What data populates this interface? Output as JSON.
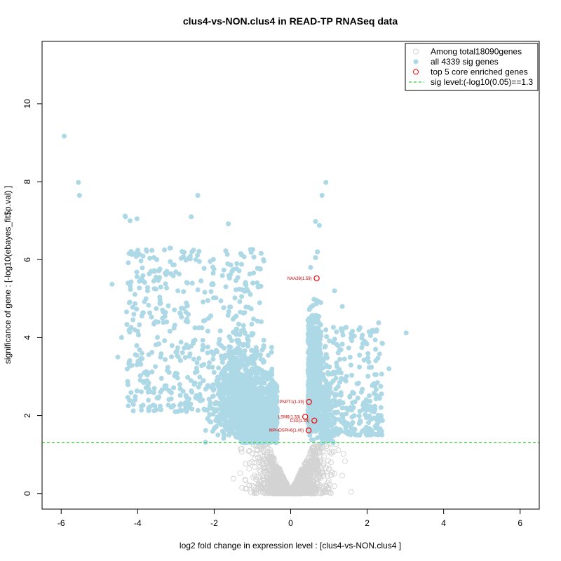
{
  "chart_data": {
    "type": "scatter",
    "title": "clus4-vs-NON.clus4 in READ-TP RNASeq data",
    "xlabel": "log2 fold change in expression level : [clus4-vs-NON.clus4 ]",
    "ylabel": "significance of gene : [-log10(ebayes_fit$p.val) ]",
    "xlim": [
      -6.5,
      6.5
    ],
    "ylim": [
      -0.4,
      11.6
    ],
    "xticks": [
      -6,
      -4,
      -2,
      0,
      2,
      4,
      6
    ],
    "yticks": [
      0,
      2,
      4,
      6,
      8,
      10
    ],
    "sig_level": 1.3,
    "colors": {
      "background": "#d3d3d3",
      "significant": "#add8e6",
      "enriched": "#ff0000",
      "sig_line": "#00cd00"
    },
    "legend": {
      "position": "top-right",
      "entries": [
        "Among total18090genes",
        "all 4339 sig genes",
        "top 5 core enriched genes",
        "sig level:(-log10(0.05)==1.3"
      ]
    },
    "series": [
      {
        "name": "sig genes (outliers)",
        "x": [
          -5.92,
          -5.55,
          -5.52,
          -4.33,
          -4.2,
          -4.32,
          -4.02,
          -3.65,
          -3.52,
          -2.6,
          -2.43,
          -1.63,
          0.82,
          0.92,
          0.65,
          0.75,
          0.52,
          0.65,
          0.7,
          -4.67,
          -4.52,
          -4.42,
          -4.25,
          -4.1,
          -3.78,
          -3.4,
          -3.3,
          -3.15,
          -2.95,
          -2.7,
          -2.58,
          -2.48,
          1.15,
          1.35,
          1.58,
          1.8,
          2.05,
          2.22,
          2.3,
          2.57,
          2.4,
          3.02,
          2.2,
          2.0,
          1.85,
          1.55,
          2.1,
          1.95
        ],
        "y": [
          9.17,
          7.98,
          7.65,
          7.12,
          7.0,
          7.1,
          7.05,
          5.7,
          5.55,
          7.1,
          7.65,
          6.92,
          7.65,
          7.98,
          6.98,
          6.88,
          5.8,
          6.05,
          6.2,
          5.37,
          3.5,
          4.0,
          5.4,
          4.6,
          3.1,
          3.5,
          6.25,
          5.95,
          5.2,
          5.4,
          6.2,
          6.0,
          5.2,
          4.8,
          4.1,
          3.55,
          4.15,
          3.7,
          4.38,
          3.2,
          3.85,
          4.12,
          3.05,
          3.45,
          2.6,
          2.5,
          1.9,
          2.2
        ]
      },
      {
        "name": "top 5 core enriched genes",
        "x": [
          0.68,
          0.48,
          0.38,
          0.62,
          0.47
        ],
        "y": [
          5.52,
          2.35,
          1.97,
          1.87,
          1.62
        ],
        "labels": [
          "NAA38(1.59)",
          "PNPT1(1.39)",
          "LSM6(1.33)",
          "C1D(1.34)",
          "MPHOSPH6(1.40)"
        ]
      }
    ]
  }
}
